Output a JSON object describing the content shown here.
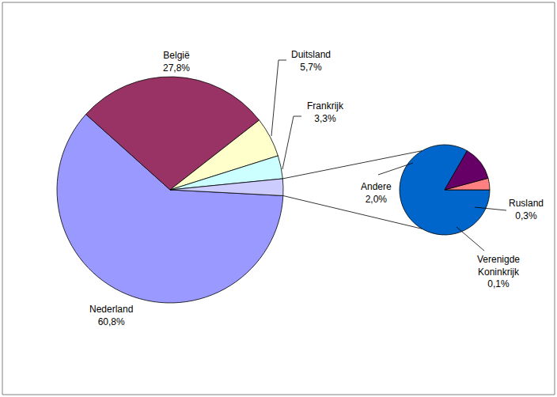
{
  "chart_data": [
    {
      "type": "pie",
      "categories": [
        "Nederland",
        "België",
        "Duitsland",
        "Frankrijk",
        null
      ],
      "values": [
        60.8,
        27.8,
        5.7,
        3.3,
        2.4
      ],
      "value_labels": [
        "60,8%",
        "27,8%",
        "5,7%",
        "3,3%",
        null
      ],
      "colors": [
        "#9999ff",
        "#993366",
        "#ffffcc",
        "#ccffff",
        "#ccccff"
      ],
      "data_labels": true
    },
    {
      "type": "pie",
      "categories": [
        "Andere",
        "Verenigde Koninkrijk",
        "Rusland"
      ],
      "values": [
        2.0,
        0.1,
        0.3
      ],
      "value_labels": [
        "2,0%",
        "0,1%",
        "0,3%"
      ],
      "colors": [
        "#0066cc",
        "#ff8080",
        "#660066"
      ],
      "data_labels": true
    }
  ]
}
